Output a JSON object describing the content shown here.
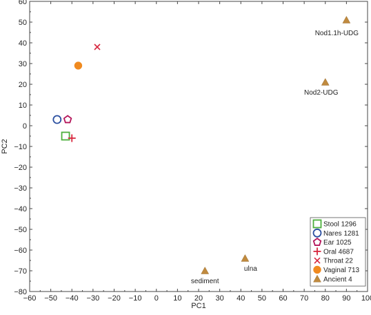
{
  "chart_data": {
    "type": "scatter",
    "xlabel": "PC1",
    "ylabel": "PC2",
    "xlim": [
      -60,
      100
    ],
    "ylim": [
      -80,
      60
    ],
    "xticks": [
      -60,
      -50,
      -40,
      -30,
      -20,
      -10,
      0,
      10,
      20,
      30,
      40,
      50,
      60,
      70,
      80,
      90,
      100
    ],
    "yticks": [
      60,
      50,
      40,
      30,
      20,
      10,
      0,
      -10,
      -20,
      -30,
      -40,
      -50,
      -60,
      -70,
      -80
    ],
    "grid": false,
    "legend_position": "bottom-right",
    "series": [
      {
        "name": "Stool 1296",
        "marker": "square-open",
        "color": "#4caf3c",
        "points": [
          {
            "x": -43,
            "y": -5
          }
        ]
      },
      {
        "name": "Nares 1281",
        "marker": "circle-open",
        "color": "#2a4fa0",
        "points": [
          {
            "x": -47,
            "y": 3
          }
        ]
      },
      {
        "name": "Ear 1025",
        "marker": "pentagon-open",
        "color": "#b4155a",
        "points": [
          {
            "x": -42,
            "y": 3
          }
        ]
      },
      {
        "name": "Oral 4687",
        "marker": "plus",
        "color": "#d7263d",
        "points": [
          {
            "x": -40,
            "y": -6
          }
        ]
      },
      {
        "name": "Throat 22",
        "marker": "cross",
        "color": "#d7263d",
        "points": [
          {
            "x": -28,
            "y": 38
          }
        ]
      },
      {
        "name": "Vaginal 713",
        "marker": "circle-filled",
        "color": "#f08a1f",
        "points": [
          {
            "x": -37,
            "y": 29
          }
        ]
      },
      {
        "name": "Ancient 4",
        "marker": "triangle-filled",
        "color": "#c08a3e",
        "points": [
          {
            "x": 90,
            "y": 51,
            "label": "Nod1.1h-UDG"
          },
          {
            "x": 80,
            "y": 21,
            "label": "Nod2-UDG"
          },
          {
            "x": 42,
            "y": -64,
            "label": "ulna"
          },
          {
            "x": 23,
            "y": -70,
            "label": "sediment"
          }
        ]
      }
    ]
  }
}
